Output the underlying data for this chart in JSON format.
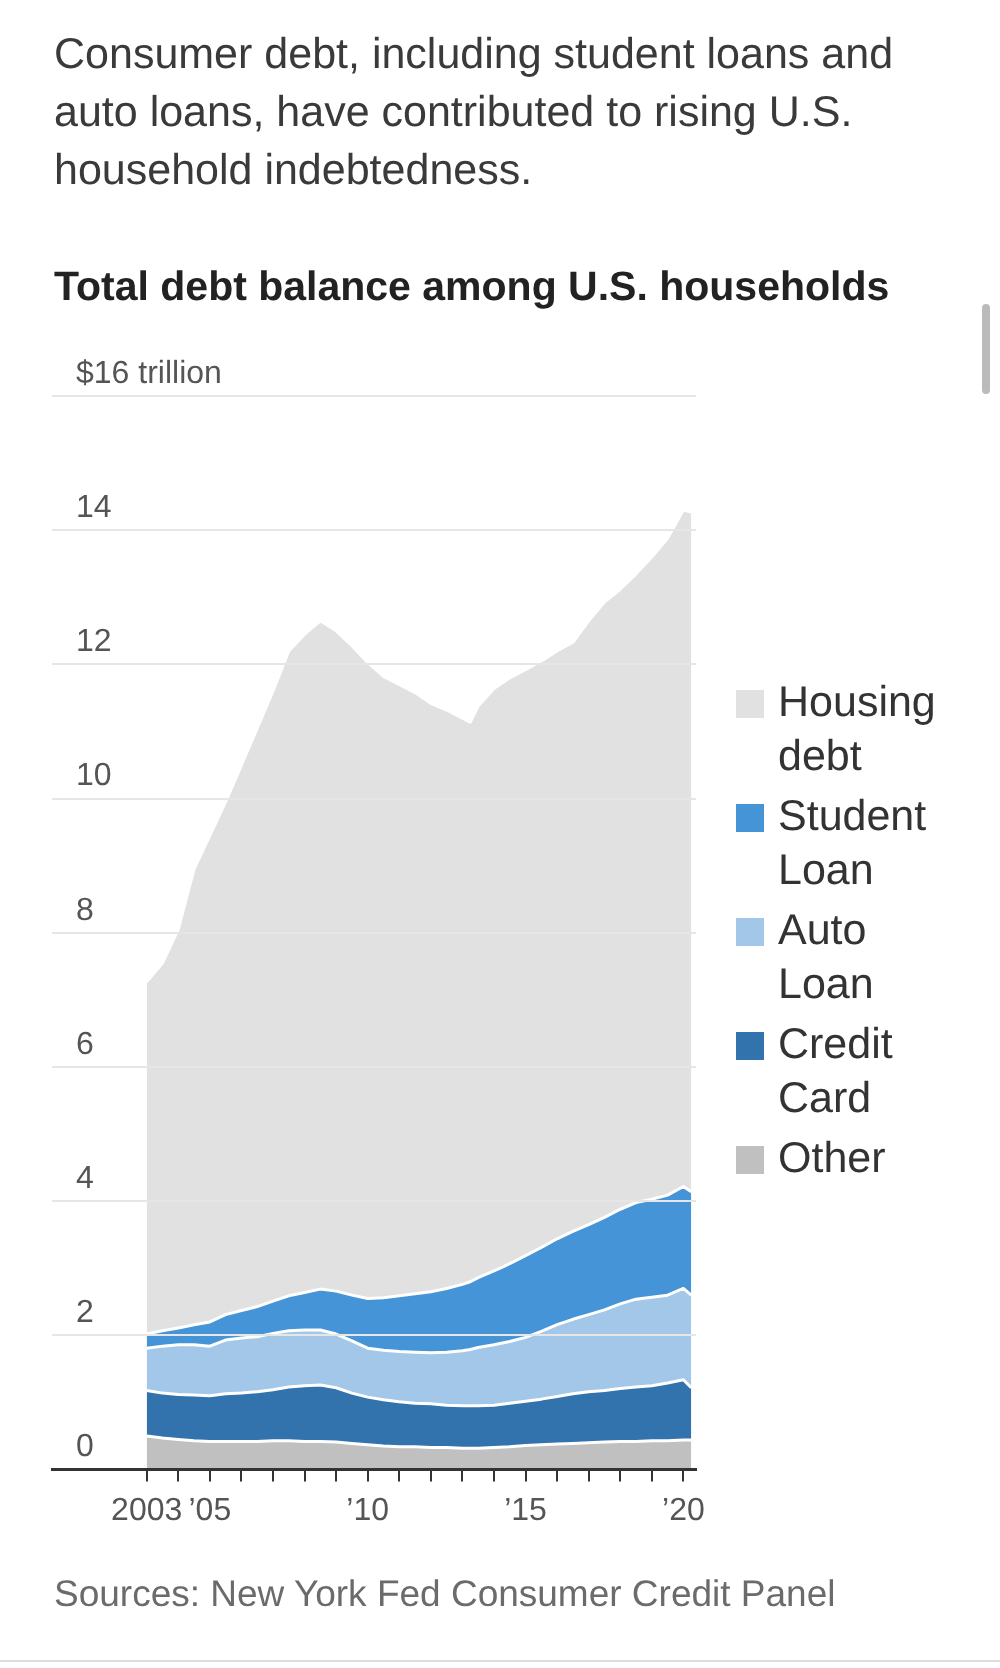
{
  "chart_data": {
    "type": "area",
    "title": "Total debt balance among U.S. households",
    "annotations": [
      "Consumer debt, including student loans and auto loans, have contributed to rising U.S. household indebtedness.",
      "Sources: New York Fed Consumer Credit Panel"
    ],
    "x": [
      2003,
      2003.5,
      2004,
      2004.5,
      2005,
      2005.5,
      2006,
      2006.5,
      2007,
      2007.5,
      2008,
      2008.5,
      2009,
      2009.5,
      2010,
      2010.5,
      2011,
      2011.5,
      2012,
      2012.5,
      2013,
      2013.25,
      2013.5,
      2014,
      2014.5,
      2015,
      2015.5,
      2016,
      2016.5,
      2017,
      2017.5,
      2018,
      2018.5,
      2019,
      2019.5,
      2020,
      2020.25
    ],
    "xlim": [
      2000,
      2020.4
    ],
    "xticks": [
      {
        "value": 2003,
        "label": "2003"
      },
      {
        "value": 2004,
        "label": null
      },
      {
        "value": 2005,
        "label": "’05"
      },
      {
        "value": 2006,
        "label": null
      },
      {
        "value": 2007,
        "label": null
      },
      {
        "value": 2008,
        "label": null
      },
      {
        "value": 2009,
        "label": null
      },
      {
        "value": 2010,
        "label": "’10"
      },
      {
        "value": 2011,
        "label": null
      },
      {
        "value": 2012,
        "label": null
      },
      {
        "value": 2013,
        "label": null
      },
      {
        "value": 2014,
        "label": null
      },
      {
        "value": 2015,
        "label": "’15"
      },
      {
        "value": 2016,
        "label": null
      },
      {
        "value": 2017,
        "label": null
      },
      {
        "value": 2018,
        "label": null
      },
      {
        "value": 2019,
        "label": null
      },
      {
        "value": 2020,
        "label": "’20"
      }
    ],
    "ylim": [
      0,
      16
    ],
    "yticks": [
      0,
      2,
      4,
      6,
      8,
      10,
      12,
      14,
      {
        "value": 16,
        "label": "$16 trillion"
      }
    ],
    "stacked": true,
    "grid": "y",
    "legend": "right",
    "series": [
      {
        "name": "Other",
        "color": "#c0c0c0",
        "values": [
          0.5,
          0.47,
          0.45,
          0.43,
          0.42,
          0.42,
          0.42,
          0.42,
          0.43,
          0.43,
          0.42,
          0.42,
          0.41,
          0.39,
          0.37,
          0.35,
          0.34,
          0.34,
          0.33,
          0.33,
          0.32,
          0.32,
          0.32,
          0.33,
          0.34,
          0.36,
          0.37,
          0.38,
          0.39,
          0.4,
          0.41,
          0.42,
          0.42,
          0.43,
          0.43,
          0.44,
          0.44
        ]
      },
      {
        "name": "Credit Card",
        "color": "#3273ad",
        "values": [
          0.68,
          0.67,
          0.67,
          0.68,
          0.68,
          0.71,
          0.72,
          0.74,
          0.76,
          0.8,
          0.83,
          0.84,
          0.81,
          0.75,
          0.71,
          0.69,
          0.67,
          0.65,
          0.65,
          0.63,
          0.63,
          0.63,
          0.63,
          0.63,
          0.65,
          0.66,
          0.68,
          0.71,
          0.74,
          0.76,
          0.77,
          0.79,
          0.81,
          0.82,
          0.86,
          0.9,
          0.78
        ]
      },
      {
        "name": "Auto Loan",
        "color": "#a2c7e9",
        "values": [
          0.63,
          0.7,
          0.74,
          0.75,
          0.74,
          0.8,
          0.82,
          0.82,
          0.84,
          0.84,
          0.83,
          0.82,
          0.8,
          0.78,
          0.73,
          0.74,
          0.75,
          0.76,
          0.76,
          0.79,
          0.82,
          0.84,
          0.87,
          0.9,
          0.92,
          0.95,
          1.01,
          1.07,
          1.11,
          1.15,
          1.2,
          1.26,
          1.31,
          1.32,
          1.31,
          1.36,
          1.38
        ]
      },
      {
        "name": "Student Loan",
        "color": "#4594d7",
        "values": [
          0.21,
          0.23,
          0.25,
          0.3,
          0.36,
          0.38,
          0.41,
          0.45,
          0.48,
          0.52,
          0.56,
          0.61,
          0.64,
          0.68,
          0.74,
          0.78,
          0.83,
          0.87,
          0.91,
          0.95,
          0.99,
          1.01,
          1.04,
          1.1,
          1.16,
          1.22,
          1.25,
          1.28,
          1.31,
          1.34,
          1.38,
          1.41,
          1.44,
          1.46,
          1.49,
          1.52,
          1.54
        ]
      },
      {
        "name": "Housing debt",
        "color": "#e1e1e1",
        "values": [
          5.25,
          5.48,
          5.94,
          6.79,
          7.25,
          7.64,
          8.13,
          8.62,
          9.09,
          9.61,
          9.81,
          9.96,
          9.84,
          9.68,
          9.48,
          9.26,
          9.11,
          8.96,
          8.77,
          8.62,
          8.44,
          8.34,
          8.52,
          8.68,
          8.73,
          8.73,
          8.74,
          8.76,
          8.78,
          9.0,
          9.17,
          9.24,
          9.37,
          9.57,
          9.79,
          10.08,
          10.13
        ]
      }
    ]
  }
}
